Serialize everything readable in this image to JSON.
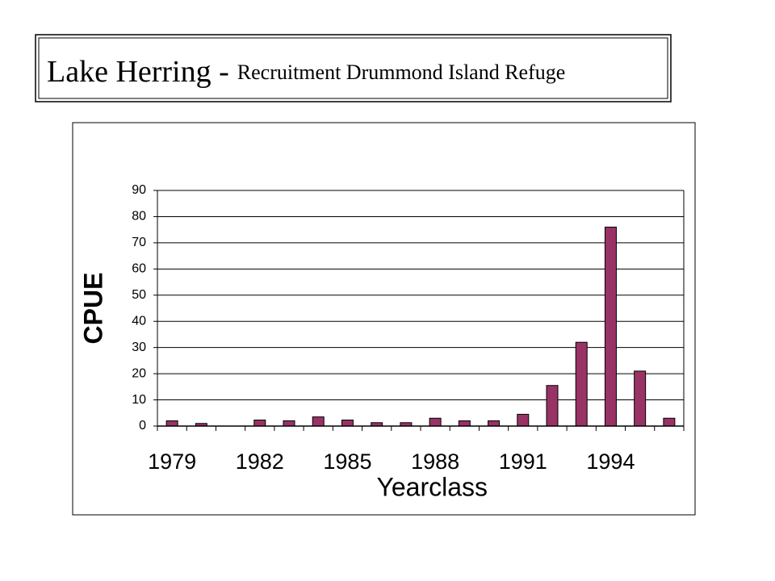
{
  "chart_data": {
    "type": "bar",
    "title": "Lake Herring -",
    "subtitle": "Recruitment Drummond Island Refuge",
    "x_label": "Yearclass",
    "y_label": "CPUE",
    "categories": [
      "1979",
      null,
      null,
      "1982",
      null,
      null,
      "1985",
      null,
      null,
      "1988",
      null,
      null,
      "1991",
      null,
      null,
      "1994",
      null,
      null
    ],
    "values": [
      2,
      1,
      0,
      2.3,
      2,
      3.5,
      2.3,
      1.3,
      1.3,
      3,
      2,
      2,
      4.5,
      15.5,
      32,
      76,
      21,
      3
    ],
    "color": "#993366",
    "ylim": [
      0,
      90
    ],
    "yticks": [
      0,
      10,
      20,
      30,
      40,
      50,
      60,
      70,
      80,
      90
    ],
    "grid": true
  }
}
